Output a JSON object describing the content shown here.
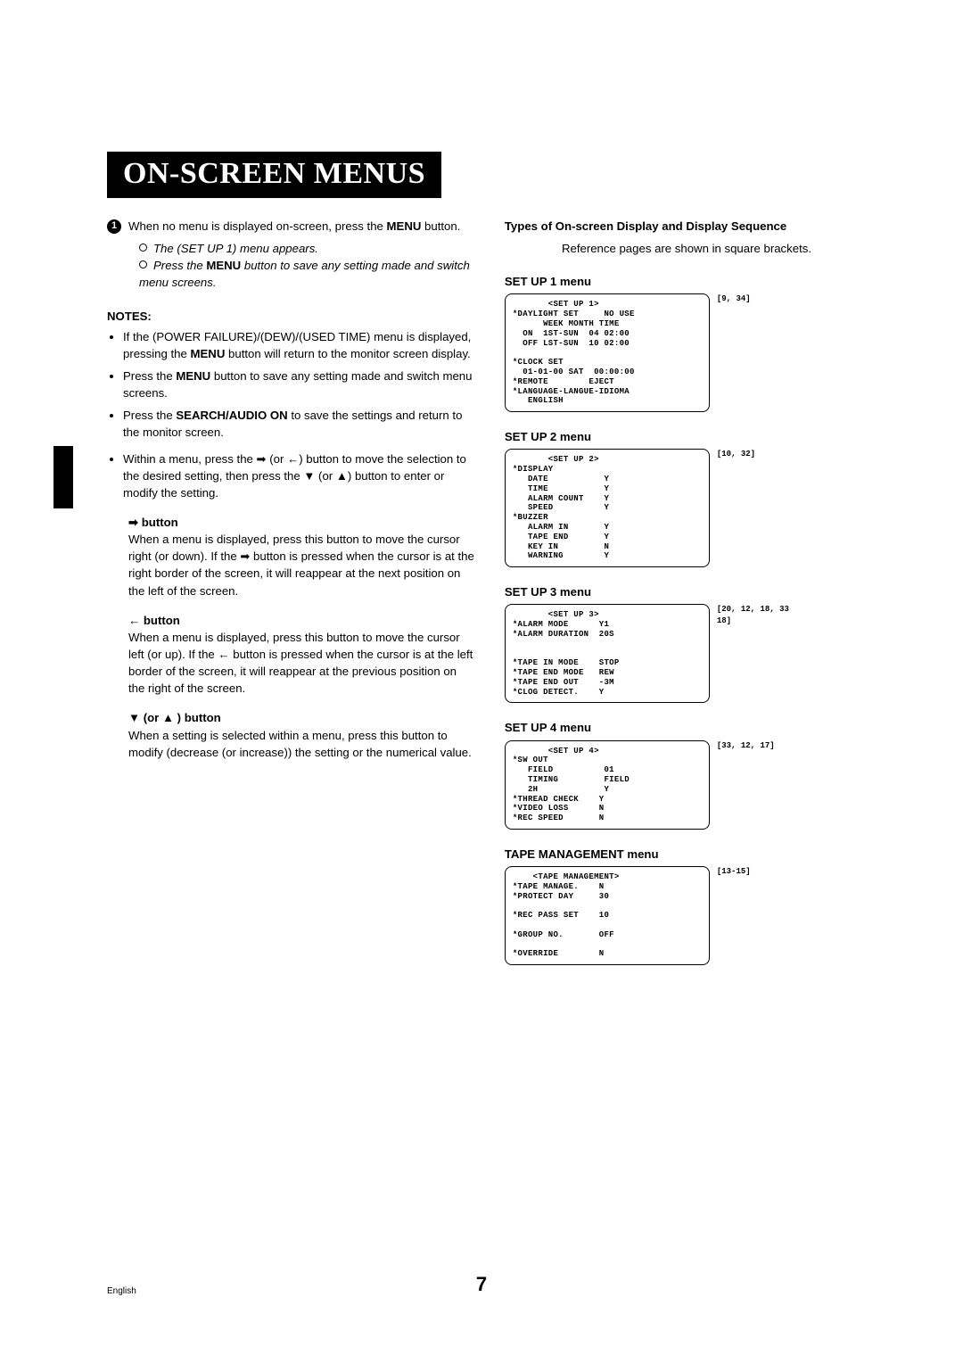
{
  "banner": "ON-SCREEN MENUS",
  "step1_num": "1",
  "step1_text_a": "When no menu is displayed on-screen, press the ",
  "step1_bold": "MENU",
  "step1_text_b": " button.",
  "step1_sub1": "The (SET UP 1) menu appears.",
  "step1_sub2a": "Press the ",
  "step1_sub2bold": "MENU",
  "step1_sub2b": " button to save any setting made and switch menu screens.",
  "notes_head": "NOTES:",
  "note1a": "If the (POWER FAILURE)/(DEW)/(USED TIME) menu is displayed, pressing the ",
  "note1bold": "MENU",
  "note1b": " button will return to the monitor screen display.",
  "note2a": "Press the ",
  "note2bold": "MENU",
  "note2b": " button to save any setting made and switch menu screens.",
  "note3a": "Press the ",
  "note3bold": "SEARCH/AUDIO ON",
  "note3b": " to save the settings and return to the monitor screen.",
  "note4": "Within a menu, press the ➡ (or ←) button to move the selection to the desired setting, then press the ▼ (or ▲) button to enter or modify the setting.",
  "btn_right_head": "➡ button",
  "btn_right_body": "When a menu is displayed, press this button to move the cursor right (or down). If the ➡ button is pressed when the cursor is at the right border of the screen, it will reappear at the next position on the left of the screen.",
  "btn_left_head": "← button",
  "btn_left_body": "When a menu is displayed, press this button to move the cursor left (or up). If the ← button is pressed when the cursor is at the left border of the screen, it will reappear at the previous position on the right of the screen.",
  "btn_down_head": "▼ (or ▲ ) button",
  "btn_down_body": "When a setting is selected within a menu, press this button to modify (decrease (or increase)) the setting or the numerical value.",
  "right_title": "Types of On-screen Display and Display Sequence",
  "right_subtitle": "Reference pages are shown in square brackets.",
  "menus": [
    {
      "title": "SET UP 1 menu",
      "ref": "[9, 34]",
      "body": "       <SET UP 1>\n*DAYLIGHT SET     NO USE\n      WEEK MONTH TIME\n  ON  1ST-SUN  04 02:00\n  OFF LST-SUN  10 02:00\n\n*CLOCK SET\n  01-01-00 SAT  00:00:00\n*REMOTE        EJECT\n*LANGUAGE-LANGUE-IDIOMA\n   ENGLISH"
    },
    {
      "title": "SET UP 2 menu",
      "ref": "[10, 32]",
      "body": "       <SET UP 2>\n*DISPLAY\n   DATE           Y\n   TIME           Y\n   ALARM COUNT    Y\n   SPEED          Y\n*BUZZER\n   ALARM IN       Y\n   TAPE END       Y\n   KEY IN         N\n   WARNING        Y"
    },
    {
      "title": "SET UP 3 menu",
      "ref": "[20, 12, 18, 33\n18]",
      "body": "       <SET UP 3>\n*ALARM MODE      Y1\n*ALARM DURATION  20S\n\n\n*TAPE IN MODE    STOP\n*TAPE END MODE   REW\n*TAPE END OUT    -3M\n*CLOG DETECT.    Y"
    },
    {
      "title": "SET UP 4 menu",
      "ref": "[33, 12, 17]",
      "body": "       <SET UP 4>\n*SW OUT\n   FIELD          01\n   TIMING         FIELD\n   2H             Y\n*THREAD CHECK    Y\n*VIDEO LOSS      N\n*REC SPEED       N"
    },
    {
      "title": "TAPE MANAGEMENT menu",
      "ref": "[13-15]",
      "body": "    <TAPE MANAGEMENT>\n*TAPE MANAGE.    N\n*PROTECT DAY     30\n\n*REC PASS SET    10\n\n*GROUP NO.       OFF\n\n*OVERRIDE        N"
    }
  ],
  "footer_lang": "English",
  "footer_page": "7"
}
